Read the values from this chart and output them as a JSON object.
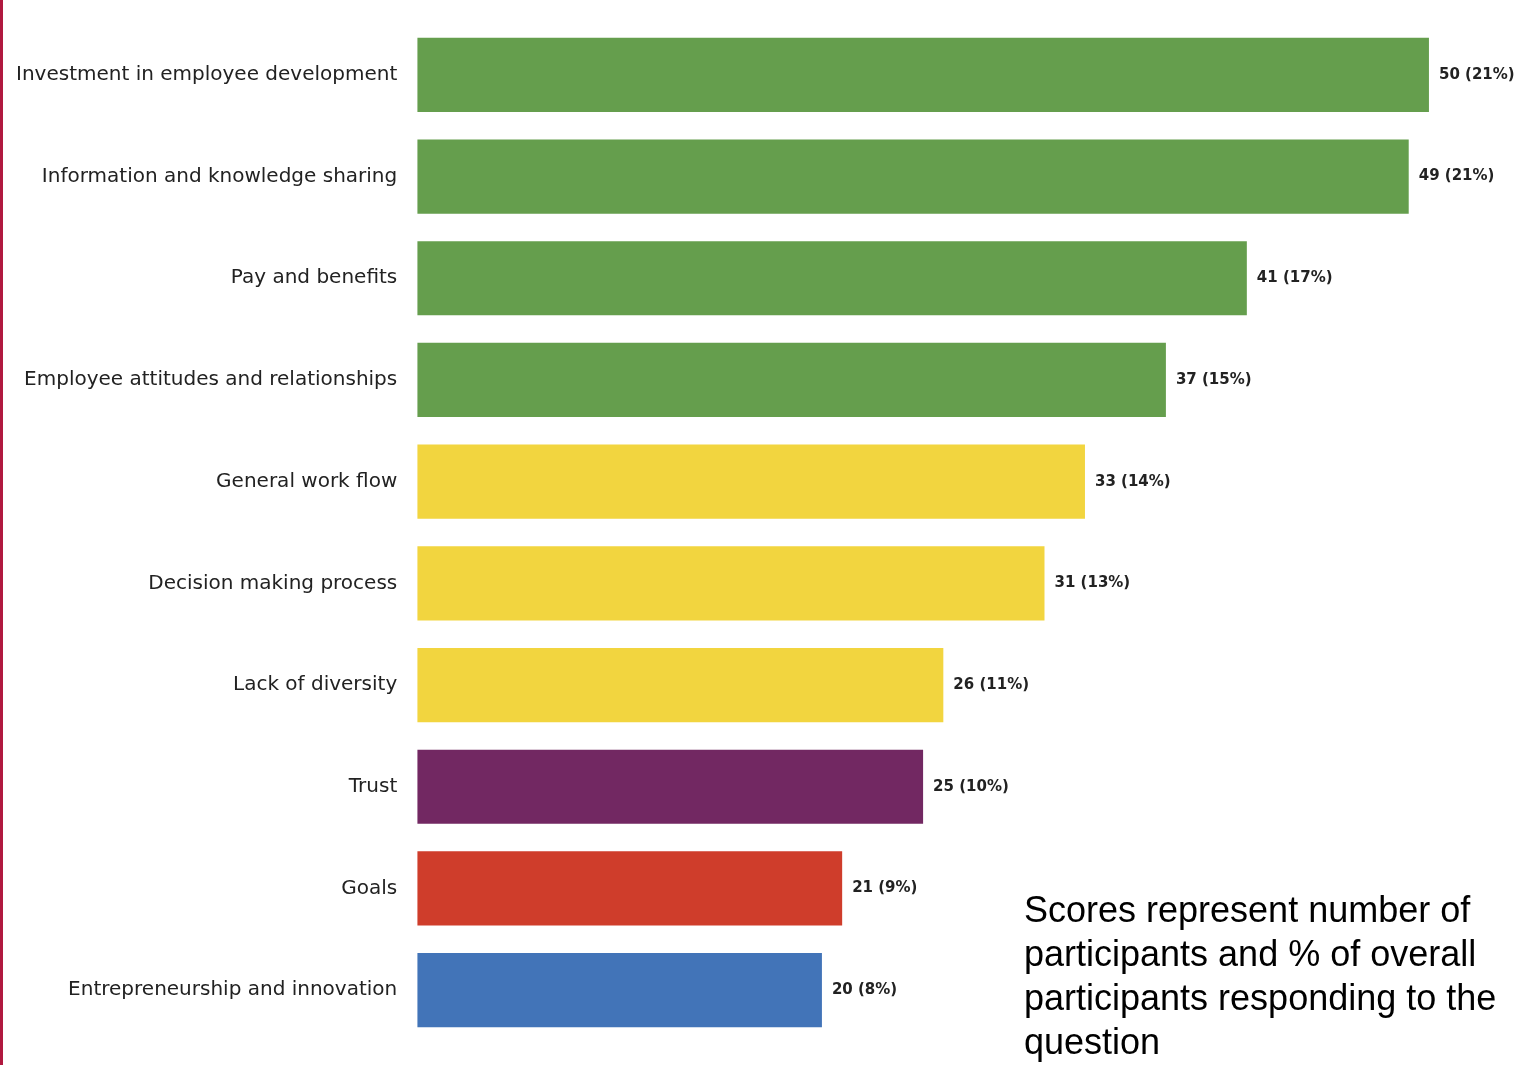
{
  "chart_data": {
    "type": "bar",
    "orientation": "horizontal",
    "categories": [
      "Investment in employee development",
      "Information and knowledge sharing",
      "Pay and benefits",
      "Employee attitudes and relationships",
      "General work flow",
      "Decision making process",
      "Lack of diversity",
      "Trust",
      "Goals",
      "Entrepreneurship and innovation"
    ],
    "values": [
      50,
      49,
      41,
      37,
      33,
      31,
      26,
      25,
      21,
      20
    ],
    "colors": [
      "#659e4d",
      "#659e4d",
      "#659e4d",
      "#659e4d",
      "#f2d53f",
      "#f2d53f",
      "#f2d53f",
      "#722862",
      "#cf3d2b",
      "#4274b8"
    ],
    "value_labels": [
      "50 (21%)",
      "49 (21%)",
      "41 (17%)",
      "37 (15%)",
      "33 (14%)",
      "31 (13%)",
      "26 (11%)",
      "25 (10%)",
      "21 (9%)",
      "20 (8%)"
    ],
    "xlim": [
      0,
      54.5
    ],
    "tick_labels": "y",
    "legend": false,
    "annotations": [
      "Scores represent number of participants and % of overall participants responding to the question"
    ]
  }
}
